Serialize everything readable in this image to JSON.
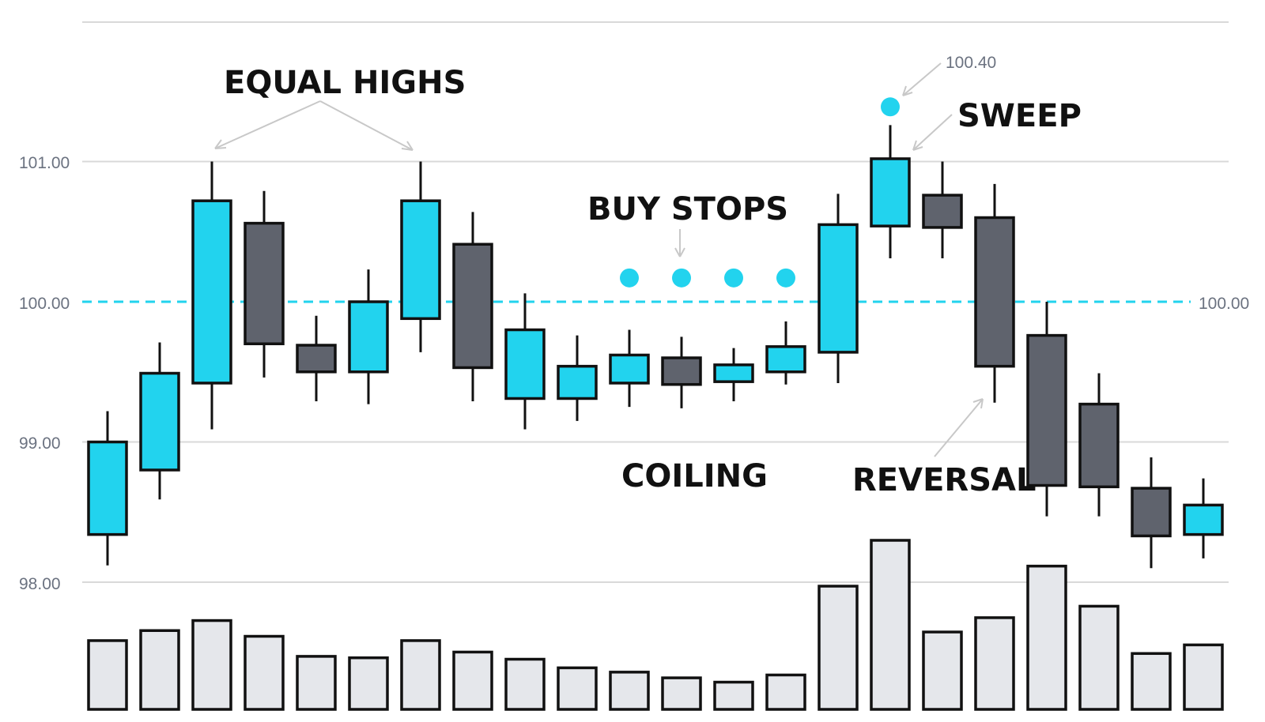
{
  "chart_data": {
    "type": "candlestick",
    "title": "",
    "xlabel": "",
    "ylabel": "",
    "ylim": [
      97.9,
      102.0
    ],
    "y_ticks": [
      "98.00",
      "99.00",
      "100.00",
      "101.00"
    ],
    "y_tick_values": [
      98.0,
      99.0,
      100.0,
      101.0
    ],
    "grid": true,
    "reference_line": {
      "value": 100.0,
      "label": "100.00",
      "style": "dashed",
      "color": "#22d3ee"
    },
    "colors": {
      "bullish": "#22d3ee",
      "bearish": "#5f636d",
      "volume": "#e5e7eb",
      "outline": "#111111",
      "grid": "#d9d9d9"
    },
    "candles": [
      {
        "open": 98.34,
        "high": 99.22,
        "low": 98.12,
        "close": 99.0
      },
      {
        "open": 98.8,
        "high": 99.71,
        "low": 98.59,
        "close": 99.49
      },
      {
        "open": 99.42,
        "high": 101.0,
        "low": 99.09,
        "close": 100.72
      },
      {
        "open": 100.56,
        "high": 100.79,
        "low": 99.46,
        "close": 99.7
      },
      {
        "open": 99.69,
        "high": 99.9,
        "low": 99.29,
        "close": 99.5
      },
      {
        "open": 99.5,
        "high": 100.23,
        "low": 99.27,
        "close": 100.0
      },
      {
        "open": 99.88,
        "high": 101.0,
        "low": 99.64,
        "close": 100.72
      },
      {
        "open": 100.41,
        "high": 100.64,
        "low": 99.29,
        "close": 99.53
      },
      {
        "open": 99.31,
        "high": 100.06,
        "low": 99.09,
        "close": 99.8
      },
      {
        "open": 99.31,
        "high": 99.76,
        "low": 99.15,
        "close": 99.54
      },
      {
        "open": 99.42,
        "high": 99.8,
        "low": 99.25,
        "close": 99.62
      },
      {
        "open": 99.6,
        "high": 99.75,
        "low": 99.24,
        "close": 99.41
      },
      {
        "open": 99.43,
        "high": 99.67,
        "low": 99.29,
        "close": 99.55
      },
      {
        "open": 99.5,
        "high": 99.86,
        "low": 99.41,
        "close": 99.68
      },
      {
        "open": 99.64,
        "high": 100.77,
        "low": 99.42,
        "close": 100.55
      },
      {
        "open": 100.54,
        "high": 101.26,
        "low": 100.31,
        "close": 101.02
      },
      {
        "open": 100.76,
        "high": 101.0,
        "low": 100.31,
        "close": 100.53
      },
      {
        "open": 100.6,
        "high": 100.84,
        "low": 99.28,
        "close": 99.54
      },
      {
        "open": 99.76,
        "high": 100.0,
        "low": 98.47,
        "close": 98.69
      },
      {
        "open": 99.27,
        "high": 99.49,
        "low": 98.47,
        "close": 98.68
      },
      {
        "open": 98.67,
        "high": 98.89,
        "low": 98.1,
        "close": 98.33
      },
      {
        "open": 98.34,
        "high": 98.74,
        "low": 98.17,
        "close": 98.55
      }
    ],
    "volume": [
      48,
      55,
      62,
      51,
      37,
      36,
      48,
      40,
      35,
      29,
      26,
      22,
      19,
      24,
      86,
      118,
      54,
      64,
      100,
      72,
      39,
      45
    ],
    "markers": [
      {
        "candle": 10,
        "price": 100.17
      },
      {
        "candle": 11,
        "price": 100.17
      },
      {
        "candle": 12,
        "price": 100.17
      },
      {
        "candle": 13,
        "price": 100.17
      },
      {
        "candle": 14,
        "price": 100.17
      },
      {
        "candle": 15,
        "price": 101.39
      }
    ],
    "annotations": {
      "equal_highs": "EQUAL HIGHS",
      "buy_stops": "BUY STOPS",
      "coiling": "COILING",
      "sweep": "SWEEP",
      "reversal": "REVERSAL",
      "sweep_price": "100.40"
    }
  }
}
